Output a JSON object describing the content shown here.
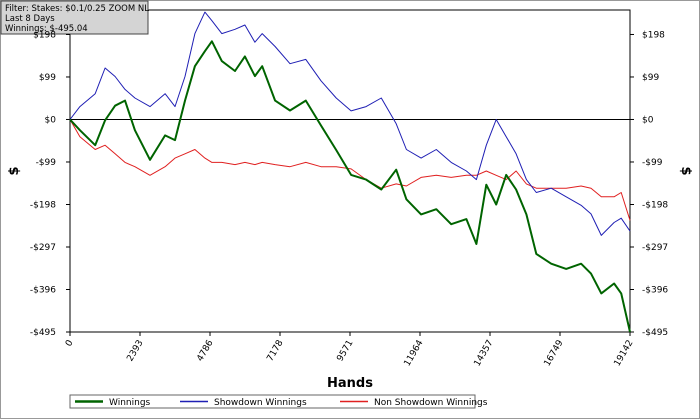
{
  "filter_box": [
    "Filter: Stakes: $0.1/0.25 ZOOM NL",
    "Last  8 Days",
    "Winnings: $-495.04"
  ],
  "chart_data": {
    "type": "line",
    "x_label": "Hands",
    "y_label": "$",
    "x": [
      0,
      340,
      860,
      1200,
      1540,
      1880,
      2220,
      2735,
      3250,
      3590,
      3930,
      4270,
      4610,
      4850,
      5190,
      5640,
      5980,
      6320,
      6570,
      7010,
      7520,
      8060,
      8580,
      9100,
      9610,
      10120,
      10640,
      11150,
      11500,
      12000,
      12520,
      13030,
      13550,
      13890,
      14230,
      14570,
      14910,
      15250,
      15600,
      15940,
      16450,
      16960,
      17470,
      17810,
      18160,
      18600,
      18840,
      19142
    ],
    "series": [
      {
        "name": "Winnings",
        "color": "#006400",
        "width": 2,
        "values": [
          0,
          -25,
          -60,
          -2,
          32,
          44,
          -25,
          -94,
          -37,
          -48,
          44,
          124,
          159,
          182,
          136,
          113,
          147,
          101,
          124,
          44,
          21,
          44,
          -14,
          -71,
          -129,
          -140,
          -163,
          -117,
          -186,
          -221,
          -209,
          -244,
          -232,
          -290,
          -152,
          -198,
          -129,
          -163,
          -221,
          -313,
          -336,
          -348,
          -336,
          -359,
          -405,
          -382,
          -405,
          -495
        ]
      },
      {
        "name": "Showdown Winnings",
        "color": "#1f1fb4",
        "width": 1,
        "values": [
          0,
          30,
          60,
          120,
          100,
          70,
          50,
          30,
          60,
          30,
          100,
          200,
          250,
          230,
          200,
          210,
          220,
          180,
          200,
          170,
          130,
          140,
          90,
          50,
          20,
          30,
          50,
          -10,
          -70,
          -90,
          -70,
          -100,
          -120,
          -140,
          -60,
          0,
          -40,
          -80,
          -140,
          -170,
          -160,
          -180,
          -200,
          -220,
          -270,
          -240,
          -230,
          -260
        ]
      },
      {
        "name": "Non Showdown Winnings",
        "color": "#e02020",
        "width": 1,
        "values": [
          0,
          -40,
          -70,
          -60,
          -80,
          -100,
          -110,
          -130,
          -110,
          -90,
          -80,
          -70,
          -90,
          -100,
          -100,
          -105,
          -100,
          -105,
          -100,
          -105,
          -110,
          -100,
          -110,
          -110,
          -115,
          -140,
          -160,
          -150,
          -155,
          -135,
          -130,
          -135,
          -130,
          -130,
          -120,
          -130,
          -140,
          -120,
          -150,
          -160,
          -160,
          -160,
          -155,
          -160,
          -180,
          -180,
          -170,
          -235
        ]
      }
    ],
    "xlim": [
      0,
      19142
    ],
    "xticks": [
      0,
      2393,
      4786,
      7178,
      9571,
      11964,
      14357,
      16749,
      19142
    ],
    "ylim": [
      -495,
      255
    ],
    "yticks": [
      {
        "value": -495,
        "label": "-$495"
      },
      {
        "value": -396,
        "label": "-$396"
      },
      {
        "value": -297,
        "label": "-$297"
      },
      {
        "value": -198,
        "label": "-$198"
      },
      {
        "value": -99,
        "label": "-$99"
      },
      {
        "value": 0,
        "label": "$0"
      },
      {
        "value": 99,
        "label": "$99"
      },
      {
        "value": 198,
        "label": "$198"
      }
    ]
  }
}
